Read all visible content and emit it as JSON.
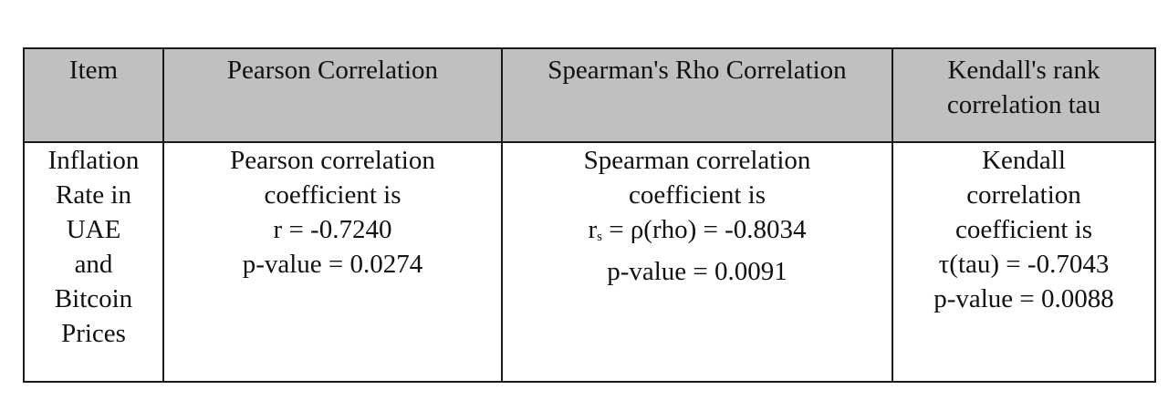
{
  "table": {
    "headers": [
      {
        "label": "Item"
      },
      {
        "label": "Pearson Correlation"
      },
      {
        "label": "Spearman's Rho Correlation"
      },
      {
        "label": "Kendall's rank correlation tau"
      }
    ],
    "item": {
      "lines": [
        "Inflation",
        "Rate in",
        "UAE",
        "and",
        "Bitcoin",
        "Prices"
      ]
    },
    "pearson": {
      "line1": "Pearson correlation",
      "line2": "coefficient is",
      "stat_symbol": "r",
      "stat_value": " = -0.7240",
      "p_value": "p-value = 0.0274"
    },
    "spearman": {
      "line1": "Spearman correlation",
      "line2": "coefficient is",
      "stat_symbol": "r",
      "stat_subscript": "s",
      "stat_value": " = ρ(rho) = -0.8034",
      "p_value": "p-value = 0.0091"
    },
    "kendall": {
      "line1": "Kendall",
      "line2": "correlation",
      "line3": "coefficient is",
      "stat": "τ(tau) = -0.7043",
      "p_value": "p-value = 0.0088"
    }
  }
}
